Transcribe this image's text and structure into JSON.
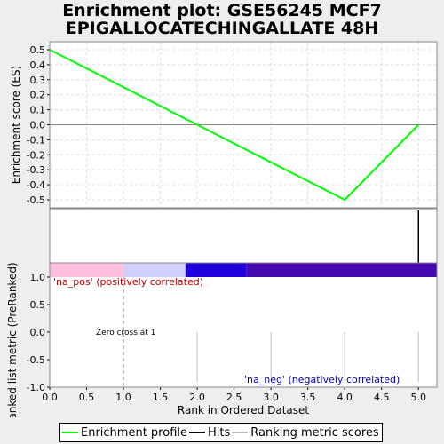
{
  "title_line1": "Enrichment plot: GSE56245 MCF7",
  "title_line2": "EPIGALLOCATECHINGALLATE 48H",
  "chart_data": [
    {
      "type": "line",
      "panel": "enrichment",
      "ylabel": "Enrichment score (ES)",
      "x": [
        0,
        1,
        4,
        5
      ],
      "values": [
        0.5,
        0.25,
        -0.5,
        0.0
      ],
      "ylim": [
        -0.55,
        0.55
      ],
      "yticks": [
        0.5,
        0.4,
        0.3,
        0.2,
        0.1,
        0.0,
        -0.1,
        -0.2,
        -0.3,
        -0.4,
        -0.5
      ],
      "ytick_labels": [
        "0.5",
        "0.4",
        "0.3",
        "0.2",
        "0.1",
        "0.0",
        "-0.1",
        "-0.2",
        "-0.3",
        "-0.4",
        "-0.5"
      ],
      "grid": true,
      "line_color": "#00ff00"
    },
    {
      "type": "bar",
      "panel": "hits",
      "hits": [
        5
      ]
    },
    {
      "type": "bar",
      "panel": "ranked_list",
      "ylabel": "Ranked list metric (PreRanked)",
      "xlabel": "Rank in Ordered Dataset",
      "xlim": [
        0,
        5.25
      ],
      "ylim": [
        -1.0,
        1.0
      ],
      "xticks": [
        0.0,
        0.5,
        1.0,
        1.5,
        2.0,
        2.5,
        3.0,
        3.5,
        4.0,
        4.5,
        5.0
      ],
      "xtick_labels": [
        "0.0",
        "0.5",
        "1.0",
        "1.5",
        "2.0",
        "2.5",
        "3.0",
        "3.5",
        "4.0",
        "4.5",
        "5.0"
      ],
      "yticks": [
        1.0,
        0.5,
        0.0,
        -0.5,
        -1.0
      ],
      "ytick_labels": [
        "1.0",
        "0.5",
        "0.0",
        "-0.5",
        "-1.0"
      ],
      "metric_x": [
        2,
        3,
        4,
        5
      ],
      "metric_values": [
        0,
        0,
        0,
        0
      ],
      "zero_cross_x": 1,
      "heat_band": [
        {
          "from": 0.0,
          "to": 1.0,
          "color": "#ffc0e0"
        },
        {
          "from": 1.0,
          "to": 1.84,
          "color": "#d0d0ff"
        },
        {
          "from": 1.84,
          "to": 2.67,
          "color": "#2000dc"
        },
        {
          "from": 2.67,
          "to": 5.25,
          "color": "#4808b0"
        }
      ],
      "annotations": {
        "pos": "'na_pos' (positively correlated)",
        "neg": "'na_neg' (negatively correlated)",
        "zero_cross": "Zero cross at 1"
      },
      "colors": {
        "pos": "#cc0000",
        "neg": "#0000bb"
      }
    }
  ],
  "legend": {
    "items": [
      {
        "label": "Enrichment profile",
        "color": "#00ff00"
      },
      {
        "label": "Hits",
        "color": "#000000"
      },
      {
        "label": "Ranking metric scores",
        "color": "#c0c0c0"
      }
    ]
  }
}
